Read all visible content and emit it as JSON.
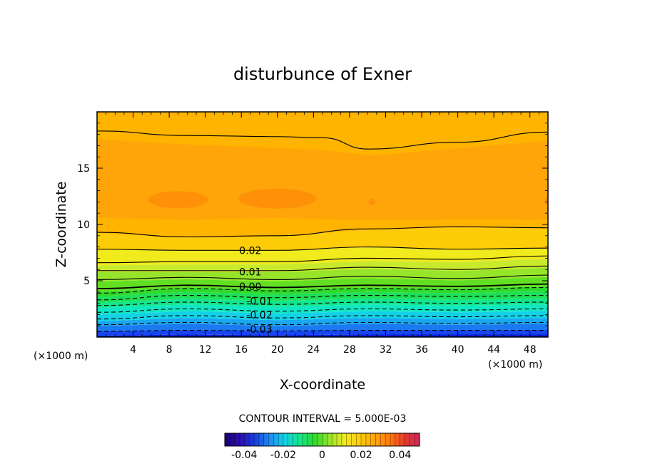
{
  "chart_data": {
    "type": "heatmap",
    "title": "disturbunce of Exner",
    "xlabel": "X-coordinate",
    "ylabel": "Z-coordinate",
    "x_unit": "(×1000 m)",
    "y_unit": "(×1000 m)",
    "xlim": [
      0,
      50
    ],
    "ylim": [
      0,
      20
    ],
    "x_ticks": [
      4,
      8,
      12,
      16,
      20,
      24,
      28,
      32,
      36,
      40,
      44,
      48
    ],
    "y_ticks": [
      5,
      10,
      15
    ],
    "contour_interval_text": "CONTOUR INTERVAL = 5.000E-03",
    "contour_labels": [
      {
        "text": "0.02",
        "x": 17,
        "z": 7.7
      },
      {
        "text": "0.01",
        "x": 17,
        "z": 5.8
      },
      {
        "text": "0.00",
        "x": 17,
        "z": 4.5
      },
      {
        "text": "-0.01",
        "x": 18,
        "z": 3.2
      },
      {
        "text": "-0.02",
        "x": 18,
        "z": 1.95
      },
      {
        "text": "-0.03",
        "x": 18,
        "z": 0.7
      }
    ],
    "contour_lines": [
      {
        "level": -0.035,
        "dashed": true,
        "points": [
          [
            0,
            0.5
          ],
          [
            10,
            0.6
          ],
          [
            20,
            0.55
          ],
          [
            30,
            0.6
          ],
          [
            40,
            0.6
          ],
          [
            50,
            0.6
          ]
        ]
      },
      {
        "level": -0.03,
        "dashed": true,
        "points": [
          [
            0,
            1.1
          ],
          [
            10,
            1.3
          ],
          [
            20,
            1.1
          ],
          [
            30,
            1.3
          ],
          [
            40,
            1.2
          ],
          [
            50,
            1.3
          ]
        ]
      },
      {
        "level": -0.025,
        "dashed": true,
        "points": [
          [
            0,
            1.6
          ],
          [
            10,
            1.9
          ],
          [
            20,
            1.7
          ],
          [
            30,
            1.9
          ],
          [
            40,
            1.8
          ],
          [
            50,
            1.9
          ]
        ]
      },
      {
        "level": -0.02,
        "dashed": true,
        "points": [
          [
            0,
            2.2
          ],
          [
            10,
            2.5
          ],
          [
            20,
            2.3
          ],
          [
            30,
            2.5
          ],
          [
            40,
            2.4
          ],
          [
            50,
            2.5
          ]
        ]
      },
      {
        "level": -0.015,
        "dashed": true,
        "points": [
          [
            0,
            2.8
          ],
          [
            10,
            3.1
          ],
          [
            20,
            2.9
          ],
          [
            30,
            3.1
          ],
          [
            40,
            3.0
          ],
          [
            50,
            3.1
          ]
        ]
      },
      {
        "level": -0.01,
        "dashed": true,
        "points": [
          [
            0,
            3.3
          ],
          [
            10,
            3.7
          ],
          [
            20,
            3.5
          ],
          [
            30,
            3.7
          ],
          [
            40,
            3.6
          ],
          [
            50,
            3.7
          ]
        ]
      },
      {
        "level": -0.005,
        "dashed": true,
        "points": [
          [
            0,
            3.9
          ],
          [
            10,
            4.3
          ],
          [
            20,
            4.1
          ],
          [
            30,
            4.3
          ],
          [
            40,
            4.2
          ],
          [
            50,
            4.4
          ]
        ]
      },
      {
        "level": 0.0,
        "dashed": false,
        "points": [
          [
            0,
            4.3
          ],
          [
            10,
            4.6
          ],
          [
            20,
            4.4
          ],
          [
            30,
            4.6
          ],
          [
            40,
            4.5
          ],
          [
            50,
            4.7
          ]
        ]
      },
      {
        "level": 0.005,
        "dashed": false,
        "points": [
          [
            0,
            5.1
          ],
          [
            10,
            5.3
          ],
          [
            20,
            5.1
          ],
          [
            30,
            5.4
          ],
          [
            40,
            5.2
          ],
          [
            50,
            5.5
          ]
        ]
      },
      {
        "level": 0.01,
        "dashed": false,
        "points": [
          [
            0,
            5.9
          ],
          [
            10,
            5.9
          ],
          [
            20,
            5.9
          ],
          [
            30,
            6.2
          ],
          [
            40,
            6.0
          ],
          [
            50,
            6.3
          ]
        ]
      },
      {
        "level": 0.015,
        "dashed": false,
        "points": [
          [
            0,
            6.6
          ],
          [
            10,
            6.7
          ],
          [
            20,
            6.7
          ],
          [
            30,
            7.0
          ],
          [
            40,
            6.9
          ],
          [
            50,
            7.2
          ]
        ]
      },
      {
        "level": 0.02,
        "dashed": false,
        "points": [
          [
            0,
            7.8
          ],
          [
            10,
            7.7
          ],
          [
            20,
            7.7
          ],
          [
            30,
            8.0
          ],
          [
            40,
            7.8
          ],
          [
            50,
            7.9
          ]
        ]
      },
      {
        "level": 0.025,
        "dashed": false,
        "points": [
          [
            0,
            9.3
          ],
          [
            10,
            8.9
          ],
          [
            20,
            9.0
          ],
          [
            30,
            9.6
          ],
          [
            40,
            9.8
          ],
          [
            50,
            9.7
          ]
        ]
      },
      {
        "level": 0.025,
        "dashed": false,
        "points": [
          [
            0,
            18.3
          ],
          [
            10,
            17.9
          ],
          [
            20,
            17.8
          ],
          [
            25,
            17.7
          ],
          [
            30,
            16.7
          ],
          [
            40,
            17.3
          ],
          [
            50,
            18.2
          ]
        ]
      }
    ],
    "fill_bands": [
      {
        "z0": 0.0,
        "z1": 0.2,
        "color": "#0a1fd8"
      },
      {
        "z0": 0.2,
        "z1": 0.6,
        "color": "#1745f0"
      },
      {
        "z0": 0.6,
        "z1": 1.1,
        "color": "#1b7af2"
      },
      {
        "z0": 1.1,
        "z1": 1.6,
        "color": "#19a8ef"
      },
      {
        "z0": 1.6,
        "z1": 2.2,
        "color": "#14d2e6"
      },
      {
        "z0": 2.2,
        "z1": 2.8,
        "color": "#10e8c3"
      },
      {
        "z0": 2.8,
        "z1": 3.3,
        "color": "#14e68c"
      },
      {
        "z0": 3.3,
        "z1": 3.9,
        "color": "#1fe057"
      },
      {
        "z0": 3.9,
        "z1": 4.3,
        "color": "#30d92a"
      },
      {
        "z0": 4.3,
        "z1": 5.1,
        "color": "#62df23"
      },
      {
        "z0": 5.1,
        "z1": 5.9,
        "color": "#96e52a"
      },
      {
        "z0": 5.9,
        "z1": 6.6,
        "color": "#c9ea2c"
      },
      {
        "z0": 6.6,
        "z1": 7.8,
        "color": "#f1ea1c"
      },
      {
        "z0": 7.8,
        "z1": 9.3,
        "color": "#ffcc0a"
      },
      {
        "z0": 9.3,
        "z1": 20.0,
        "color": "#ffb400"
      }
    ],
    "upper_shade_color": "#ffa50a",
    "core_shade_color": "#ff9108",
    "colorbar": {
      "ticks": [
        "-0.04",
        "-0.02",
        "0",
        "0.02",
        "0.04"
      ],
      "min": -0.05,
      "max": 0.05,
      "colors": [
        "#1a0070",
        "#2a10b0",
        "#1840e0",
        "#1e8cf0",
        "#12d2e6",
        "#14e68c",
        "#30d92a",
        "#96e52a",
        "#f1ea1c",
        "#ffcc0a",
        "#ffa50a",
        "#ff7a10",
        "#e83a2a",
        "#c8285a"
      ]
    }
  }
}
